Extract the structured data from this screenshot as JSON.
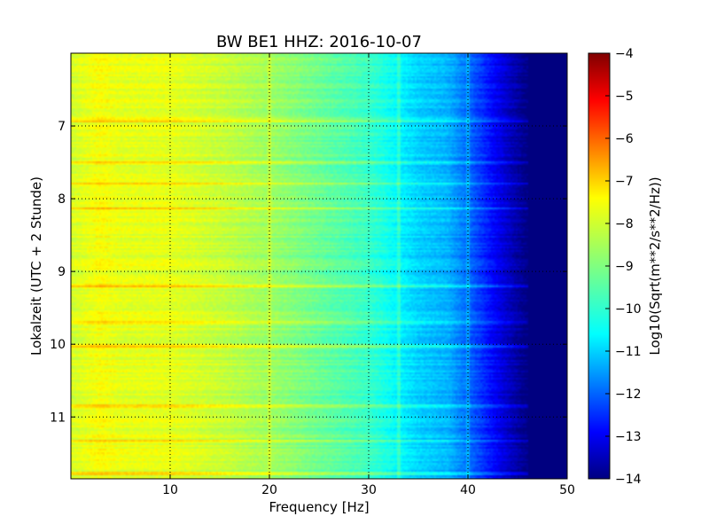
{
  "chart_data": {
    "type": "heatmap",
    "title": "BW BE1 HHZ: 2016-10-07",
    "xlabel": "Frequency [Hz]",
    "ylabel": "Lokalzeit (UTC + 2 Stunde)",
    "xlim": [
      0,
      50
    ],
    "ylim": [
      6.0,
      11.85
    ],
    "y_inverted": true,
    "xticks": [
      "10",
      "20",
      "30",
      "40",
      "50"
    ],
    "xtick_values": [
      10,
      20,
      30,
      40,
      50
    ],
    "yticks": [
      "7",
      "8",
      "9",
      "10",
      "11"
    ],
    "ytick_values": [
      7,
      8,
      9,
      10,
      11
    ],
    "grid": true,
    "colormap": "jet",
    "colorbar": {
      "label": "Log10(Sqrt(m**2/s**2/Hz))",
      "range": [
        -14,
        -4
      ],
      "ticks": [
        "−4",
        "−5",
        "−6",
        "−7",
        "−8",
        "−9",
        "−10",
        "−11",
        "−12",
        "−13",
        "−14"
      ],
      "tick_values": [
        -4,
        -5,
        -6,
        -7,
        -8,
        -9,
        -10,
        -11,
        -12,
        -13,
        -14
      ]
    },
    "spectral_profile": {
      "frequency_hz": [
        0,
        3,
        5,
        10,
        15,
        20,
        25,
        30,
        33,
        35,
        38,
        40,
        42,
        44,
        46,
        50
      ],
      "log_amplitude": [
        -8.2,
        -7.8,
        -8.0,
        -8.0,
        -8.3,
        -8.7,
        -9.2,
        -9.7,
        -10.3,
        -10.7,
        -11.0,
        -11.7,
        -12.5,
        -13.3,
        -14.0,
        -14.0
      ]
    },
    "high_energy_bands_hours": [
      6.93,
      7.5,
      7.8,
      8.13,
      9.2,
      9.7,
      10.03,
      10.85,
      11.33,
      11.78
    ],
    "vertical_lines_hz": [
      33,
      40
    ],
    "colors": {
      "dark_red": "#800000",
      "yellow": "#ffff00",
      "cyan": "#00ffff",
      "dark_blue": "#000080"
    }
  }
}
